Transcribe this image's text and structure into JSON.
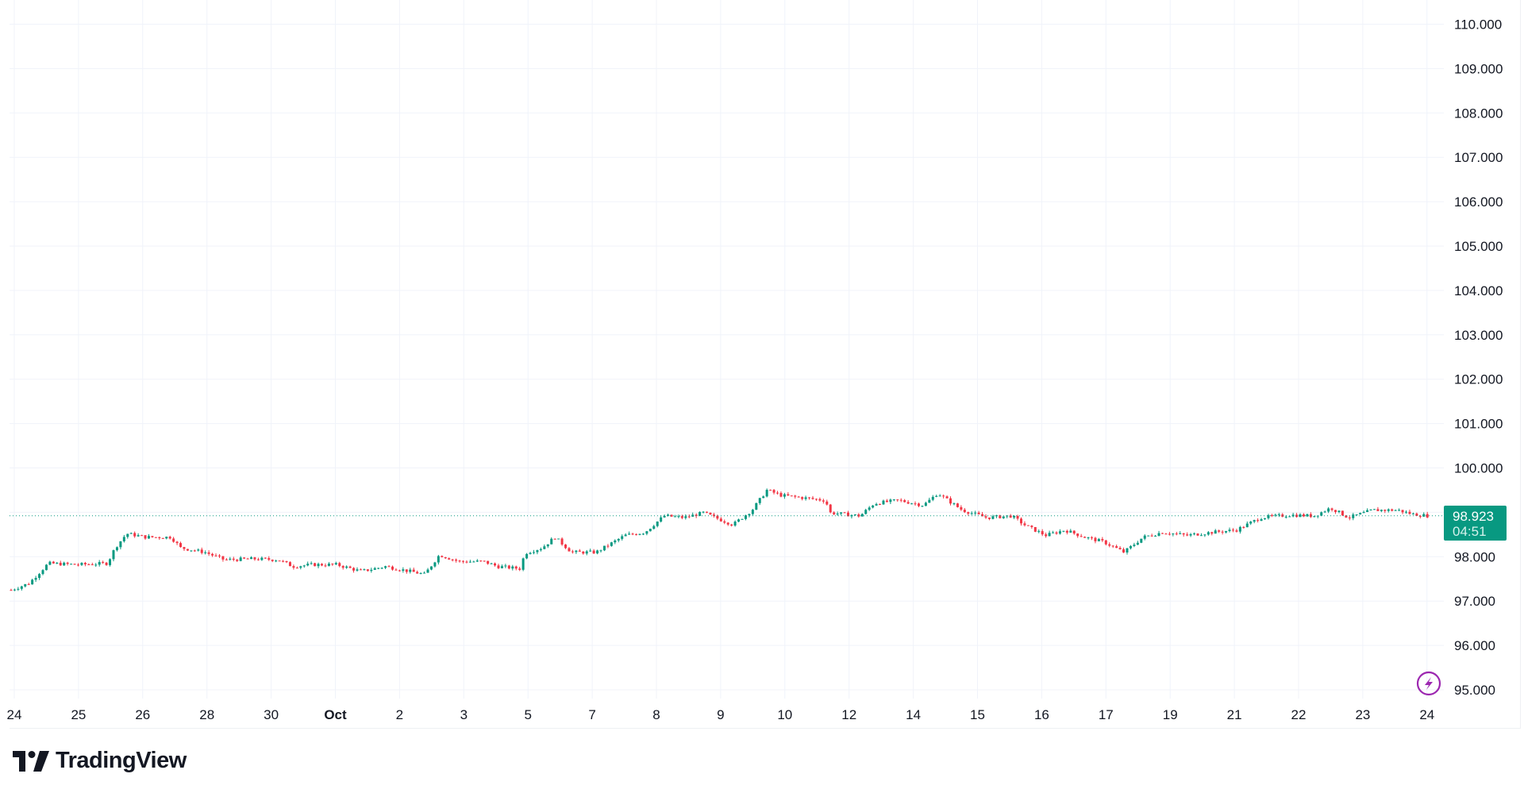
{
  "chart_data": {
    "type": "candlestick",
    "x_tick_labels": [
      "24",
      "25",
      "26",
      "28",
      "30",
      "Oct",
      "2",
      "3",
      "5",
      "7",
      "8",
      "9",
      "10",
      "12",
      "14",
      "15",
      "16",
      "17",
      "19",
      "21",
      "22",
      "23",
      "24"
    ],
    "y_tick_labels": [
      "110.000",
      "109.000",
      "108.000",
      "107.000",
      "106.000",
      "105.000",
      "104.000",
      "103.000",
      "102.000",
      "101.000",
      "100.000",
      "98.000",
      "97.000",
      "96.000",
      "95.000"
    ],
    "ylim": [
      95,
      110
    ],
    "grid": true,
    "price_path": [
      [
        -0.05,
        97.25
      ],
      [
        0.23,
        97.4
      ],
      [
        0.53,
        97.85
      ],
      [
        0.99,
        97.82
      ],
      [
        1.45,
        97.85
      ],
      [
        1.57,
        98.2
      ],
      [
        1.75,
        98.52
      ],
      [
        2.05,
        98.44
      ],
      [
        2.44,
        98.44
      ],
      [
        2.59,
        98.2
      ],
      [
        2.97,
        98.1
      ],
      [
        3.27,
        97.93
      ],
      [
        3.73,
        97.95
      ],
      [
        4.11,
        97.93
      ],
      [
        4.34,
        97.78
      ],
      [
        4.64,
        97.82
      ],
      [
        5.02,
        97.82
      ],
      [
        5.4,
        97.67
      ],
      [
        5.78,
        97.78
      ],
      [
        6.16,
        97.67
      ],
      [
        6.39,
        97.6
      ],
      [
        6.62,
        98.04
      ],
      [
        6.93,
        97.89
      ],
      [
        7.31,
        97.89
      ],
      [
        7.53,
        97.78
      ],
      [
        7.88,
        97.73
      ],
      [
        7.95,
        98.08
      ],
      [
        8.22,
        98.2
      ],
      [
        8.42,
        98.44
      ],
      [
        8.68,
        98.1
      ],
      [
        9.06,
        98.1
      ],
      [
        9.51,
        98.48
      ],
      [
        9.82,
        98.55
      ],
      [
        10.12,
        98.92
      ],
      [
        10.43,
        98.88
      ],
      [
        10.73,
        98.99
      ],
      [
        11.19,
        98.72
      ],
      [
        11.49,
        99.05
      ],
      [
        11.72,
        99.5
      ],
      [
        11.95,
        99.38
      ],
      [
        12.33,
        99.32
      ],
      [
        12.63,
        99.27
      ],
      [
        12.71,
        98.99
      ],
      [
        13.17,
        98.92
      ],
      [
        13.39,
        99.2
      ],
      [
        13.77,
        99.27
      ],
      [
        14.16,
        99.16
      ],
      [
        14.38,
        99.43
      ],
      [
        14.61,
        99.2
      ],
      [
        14.76,
        99.05
      ],
      [
        15.14,
        98.88
      ],
      [
        15.53,
        98.92
      ],
      [
        15.75,
        98.7
      ],
      [
        16.06,
        98.48
      ],
      [
        16.36,
        98.6
      ],
      [
        16.67,
        98.44
      ],
      [
        16.97,
        98.33
      ],
      [
        17.28,
        98.1
      ],
      [
        17.58,
        98.44
      ],
      [
        17.88,
        98.55
      ],
      [
        18.26,
        98.48
      ],
      [
        18.65,
        98.55
      ],
      [
        19.03,
        98.6
      ],
      [
        19.41,
        98.88
      ],
      [
        19.86,
        98.94
      ],
      [
        20.24,
        98.92
      ],
      [
        20.5,
        99.1
      ],
      [
        20.78,
        98.88
      ],
      [
        21.16,
        99.05
      ],
      [
        21.54,
        99.05
      ],
      [
        21.77,
        98.96
      ],
      [
        22.02,
        98.92
      ]
    ],
    "last_price": "98.923",
    "countdown": "04:51",
    "up_color": "#089981",
    "down_color": "#f23645",
    "last_price_color": "#089981",
    "icon": "lightning-bolt-icon",
    "icon_color": "#9c27b0"
  },
  "brand": {
    "name": "TradingView"
  }
}
